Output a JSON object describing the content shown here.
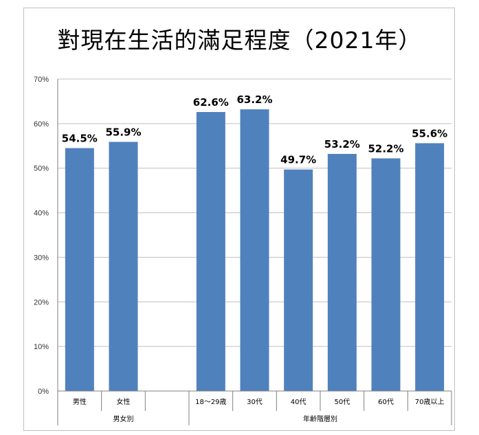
{
  "title": "對現在生活的滿足程度（2021年）",
  "colors": {
    "bar": "#4f81bd",
    "grid": "#bfbfbf",
    "axis": "#7f7f7f"
  },
  "chart_data": {
    "type": "bar",
    "title": "對現在生活的滿足程度（2021年）",
    "xlabel": "",
    "ylabel": "",
    "ylim": [
      0,
      70
    ],
    "y_ticks": [
      "0%",
      "10%",
      "20%",
      "30%",
      "40%",
      "50%",
      "60%",
      "70%"
    ],
    "grid": true,
    "legend": "none",
    "categories": [
      "男性",
      "女性",
      "",
      "18～29歳",
      "30代",
      "40代",
      "50代",
      "60代",
      "70歳以上"
    ],
    "values": [
      54.5,
      55.9,
      null,
      62.6,
      63.2,
      49.7,
      53.2,
      52.2,
      55.6
    ],
    "data_labels": [
      "54.5%",
      "55.9%",
      "",
      "62.6%",
      "63.2%",
      "49.7%",
      "53.2%",
      "52.2%",
      "55.6%"
    ],
    "groups": [
      {
        "label": "男女別",
        "span": 3
      },
      {
        "label": "年齢階層別",
        "span": 6
      }
    ]
  }
}
